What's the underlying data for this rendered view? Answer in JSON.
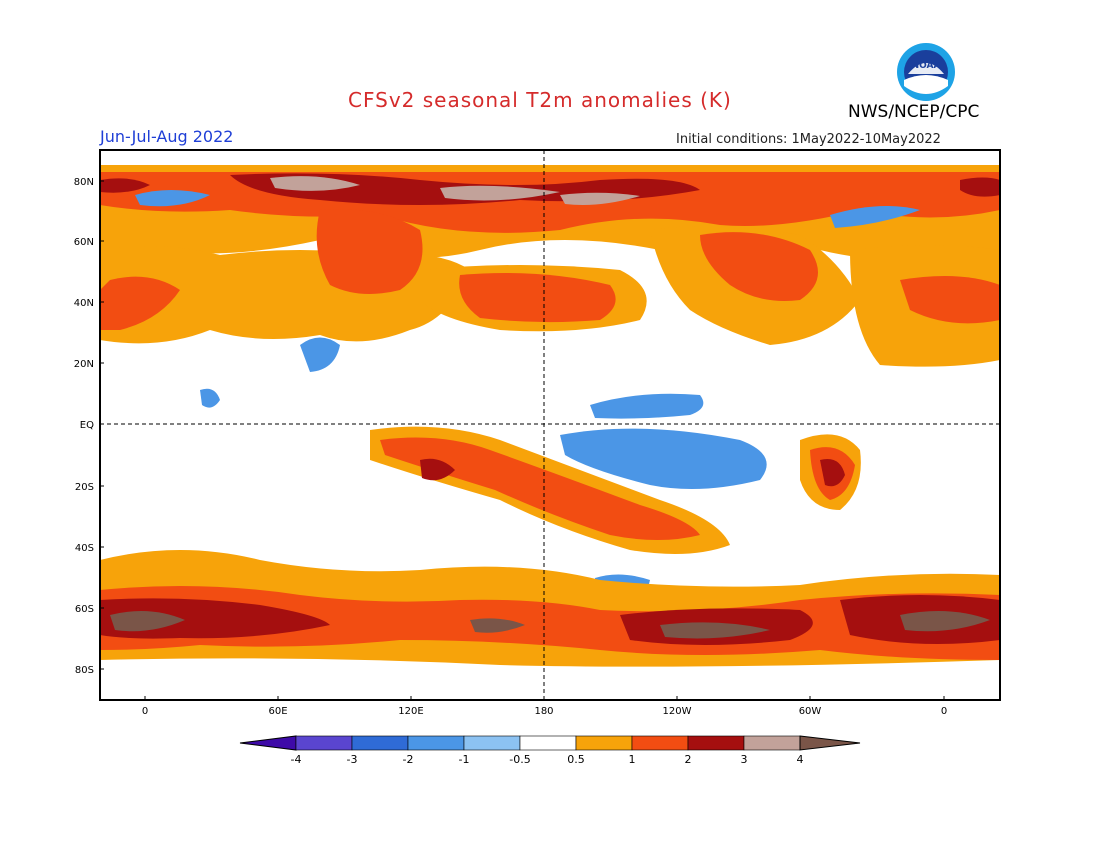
{
  "header": {
    "title": "CFSv2 seasonal T2m anomalies (K)",
    "org": "NWS/NCEP/CPC",
    "season": "Jun-Jul-Aug 2022",
    "initial_conditions": "Initial conditions: 1May2022-10May2022",
    "logo_text": "NOAA"
  },
  "map": {
    "lat_labels": [
      "80N",
      "60N",
      "40N",
      "20N",
      "EQ",
      "20S",
      "40S",
      "60S",
      "80S"
    ],
    "lon_labels": [
      "0",
      "60E",
      "120E",
      "180",
      "120W",
      "60W",
      "0"
    ]
  },
  "colorbar": {
    "ticks": [
      "-4",
      "-3",
      "-2",
      "-1",
      "-0.5",
      "0.5",
      "1",
      "2",
      "3",
      "4"
    ],
    "colors": [
      "#3e0aa8",
      "#5a45cf",
      "#2f6bd6",
      "#4b96e6",
      "#8cc2f2",
      "#ffffff",
      "#f7a30a",
      "#f24d12",
      "#a50f0f",
      "#c2a29a",
      "#7a5548"
    ]
  }
}
